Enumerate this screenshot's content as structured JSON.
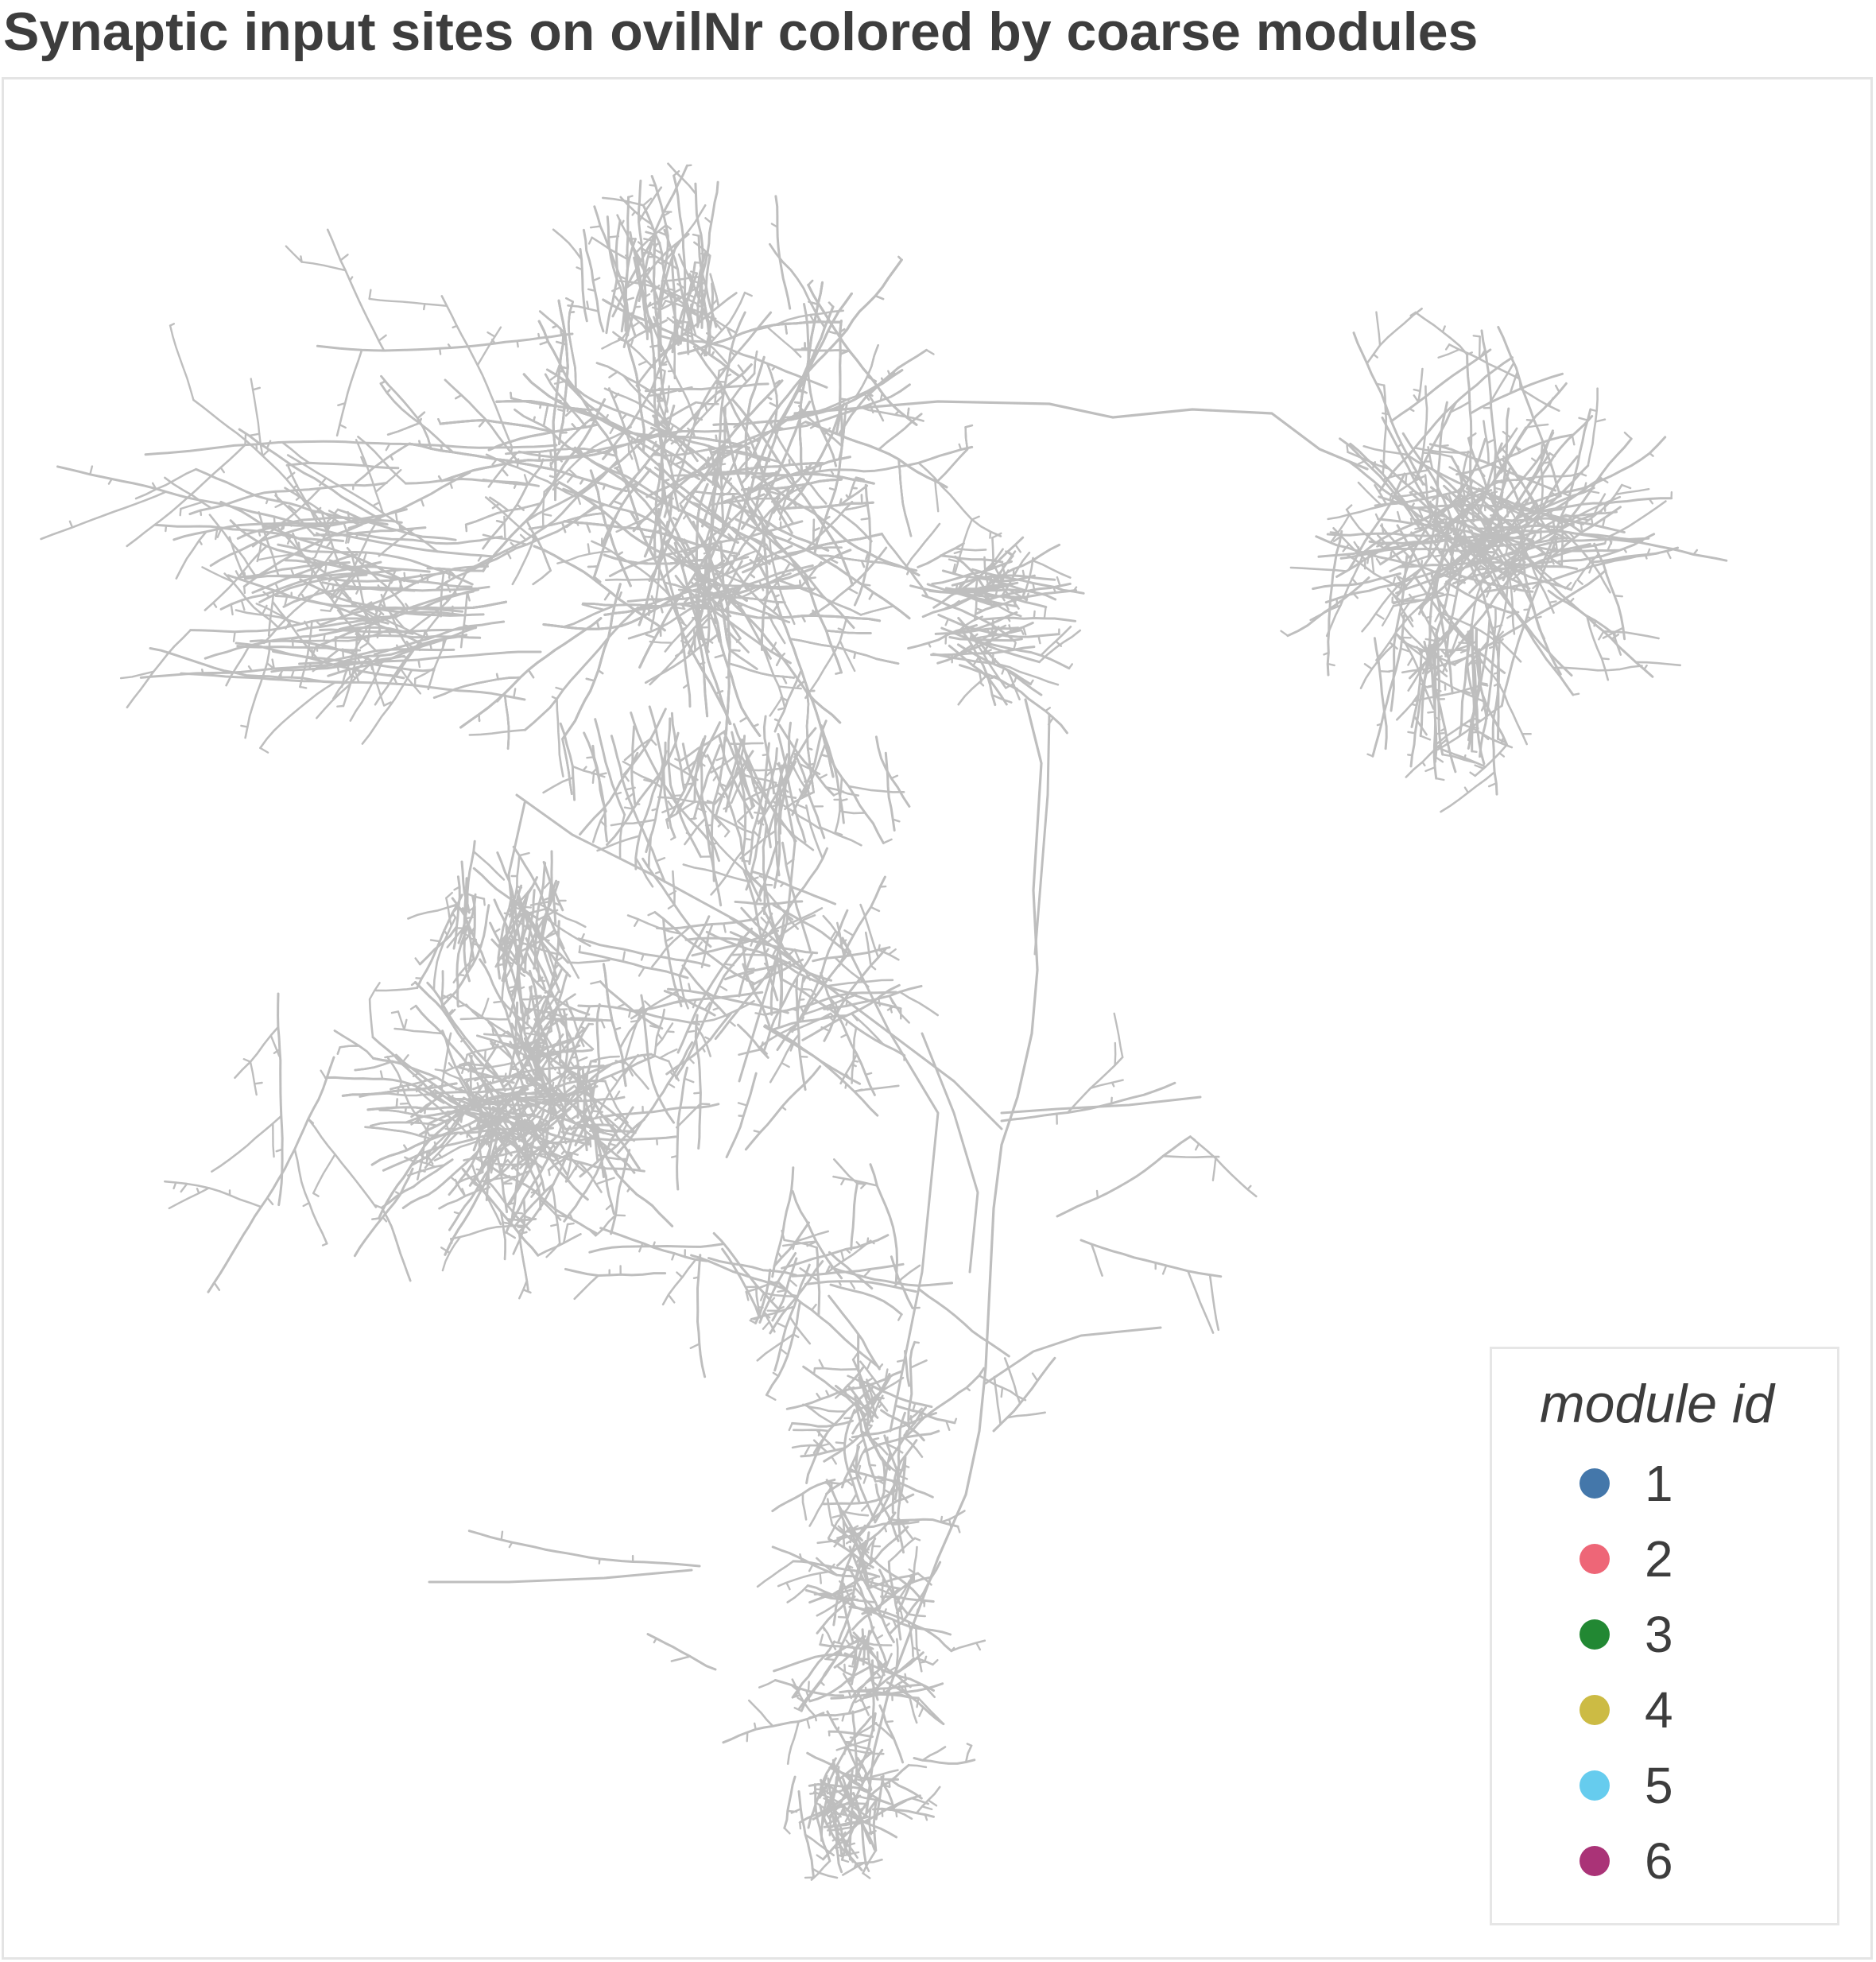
{
  "title": "Synaptic input sites on ovilNr colored by coarse modules",
  "neuron_color": "#bebebe",
  "legend": {
    "title": "module id",
    "items": [
      {
        "label": "1",
        "color": "#4477aa"
      },
      {
        "label": "2",
        "color": "#ee6677"
      },
      {
        "label": "3",
        "color": "#228833"
      },
      {
        "label": "4",
        "color": "#ccbb44"
      },
      {
        "label": "5",
        "color": "#66ccee"
      },
      {
        "label": "6",
        "color": "#aa3377"
      }
    ]
  }
}
